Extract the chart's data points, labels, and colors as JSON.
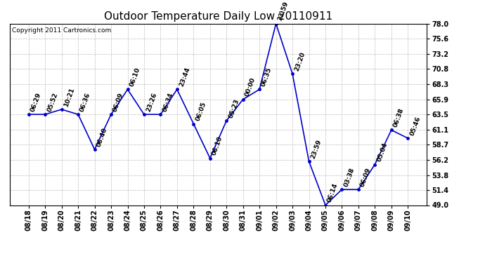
{
  "title": "Outdoor Temperature Daily Low 20110911",
  "copyright": "Copyright 2011 Cartronics.com",
  "line_color": "#0000cc",
  "background_color": "#ffffff",
  "plot_bg_color": "#ffffff",
  "grid_color": "#bbbbbb",
  "dates": [
    "08/18",
    "08/19",
    "08/20",
    "08/21",
    "08/22",
    "08/23",
    "08/24",
    "08/25",
    "08/26",
    "08/27",
    "08/28",
    "08/29",
    "08/30",
    "08/31",
    "09/01",
    "09/02",
    "09/03",
    "09/04",
    "09/05",
    "09/06",
    "09/07",
    "09/08",
    "09/09",
    "09/10"
  ],
  "values": [
    63.5,
    63.5,
    64.3,
    63.5,
    57.9,
    63.5,
    67.5,
    63.5,
    63.5,
    67.5,
    62.0,
    56.5,
    62.5,
    65.9,
    67.5,
    78.0,
    70.0,
    56.0,
    49.0,
    51.5,
    51.5,
    55.5,
    61.0,
    59.7
  ],
  "point_labels": [
    "06:29",
    "05:52",
    "10:21",
    "06:36",
    "06:40",
    "06:09",
    "06:10",
    "23:26",
    "06:34",
    "23:44",
    "06:05",
    "06:10",
    "05:23",
    "00:00",
    "06:35",
    "23:59",
    "23:20",
    "23:59",
    "06:14",
    "03:38",
    "06:09",
    "05:04",
    "06:38",
    "05:46"
  ],
  "ylim": [
    49.0,
    78.0
  ],
  "yticks": [
    49.0,
    51.4,
    53.8,
    56.2,
    58.7,
    61.1,
    63.5,
    65.9,
    68.3,
    70.8,
    73.2,
    75.6,
    78.0
  ],
  "title_fontsize": 11,
  "label_fontsize": 6.5,
  "tick_fontsize": 7,
  "copyright_fontsize": 6.5
}
